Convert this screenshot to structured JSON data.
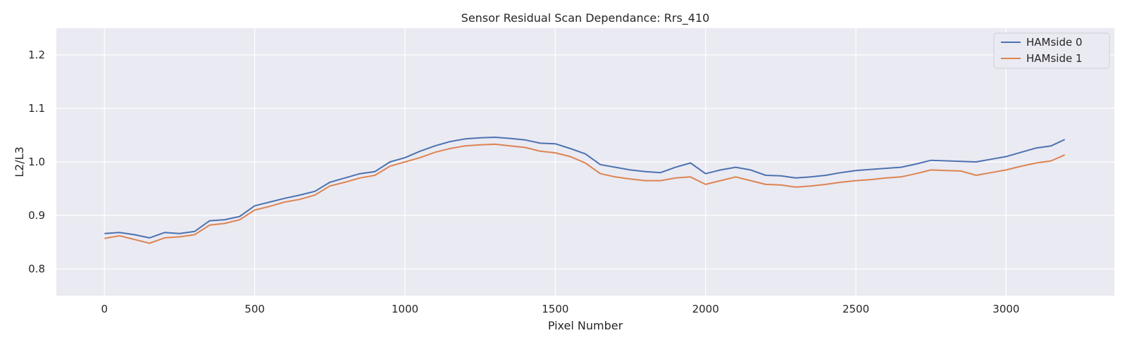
{
  "chart_data": {
    "type": "line",
    "title": "Sensor Residual Scan Dependance: Rrs_410",
    "xlabel": "Pixel Number",
    "ylabel": "L2/L3",
    "xlim": [
      -160,
      3360
    ],
    "ylim": [
      0.75,
      1.25
    ],
    "xticks": [
      0,
      500,
      1000,
      1500,
      2000,
      2500,
      3000
    ],
    "yticks": [
      0.8,
      0.9,
      1.0,
      1.1,
      1.2
    ],
    "xtick_labels": [
      "0",
      "500",
      "1000",
      "1500",
      "2000",
      "2500",
      "3000"
    ],
    "ytick_labels": [
      "0.8",
      "0.9",
      "1.0",
      "1.1",
      "1.2"
    ],
    "grid": true,
    "legend_position": "top-right",
    "background": "#eaeaf2",
    "series": [
      {
        "name": "HAMside 0",
        "color": "#4c72b0",
        "x": [
          0,
          50,
          100,
          150,
          200,
          250,
          300,
          350,
          400,
          450,
          500,
          550,
          600,
          650,
          700,
          750,
          800,
          850,
          900,
          950,
          1000,
          1050,
          1100,
          1150,
          1200,
          1250,
          1300,
          1350,
          1400,
          1450,
          1500,
          1550,
          1600,
          1650,
          1700,
          1750,
          1800,
          1850,
          1900,
          1950,
          2000,
          2050,
          2100,
          2150,
          2200,
          2250,
          2300,
          2350,
          2400,
          2450,
          2500,
          2550,
          2600,
          2650,
          2700,
          2750,
          2800,
          2850,
          2900,
          2950,
          3000,
          3050,
          3100,
          3150,
          3195
        ],
        "y": [
          0.866,
          0.868,
          0.864,
          0.858,
          0.868,
          0.866,
          0.87,
          0.89,
          0.892,
          0.898,
          0.918,
          0.925,
          0.932,
          0.938,
          0.945,
          0.962,
          0.97,
          0.978,
          0.982,
          1.0,
          1.008,
          1.02,
          1.03,
          1.038,
          1.043,
          1.045,
          1.046,
          1.044,
          1.041,
          1.035,
          1.034,
          1.025,
          1.015,
          0.995,
          0.99,
          0.985,
          0.982,
          0.98,
          0.99,
          0.998,
          0.978,
          0.985,
          0.99,
          0.985,
          0.975,
          0.974,
          0.97,
          0.972,
          0.975,
          0.98,
          0.984,
          0.986,
          0.988,
          0.99,
          0.996,
          1.003,
          1.002,
          1.001,
          1.0,
          1.005,
          1.01,
          1.018,
          1.026,
          1.03,
          1.042
        ]
      },
      {
        "name": "HAMside 1",
        "color": "#dd8452",
        "x": [
          0,
          50,
          100,
          150,
          200,
          250,
          300,
          350,
          400,
          450,
          500,
          550,
          600,
          650,
          700,
          750,
          800,
          850,
          900,
          950,
          1000,
          1050,
          1100,
          1150,
          1200,
          1250,
          1300,
          1350,
          1400,
          1450,
          1500,
          1550,
          1600,
          1650,
          1700,
          1750,
          1800,
          1850,
          1900,
          1950,
          2000,
          2050,
          2100,
          2150,
          2200,
          2250,
          2300,
          2350,
          2400,
          2450,
          2500,
          2550,
          2600,
          2650,
          2700,
          2750,
          2800,
          2850,
          2900,
          2950,
          3000,
          3050,
          3100,
          3150,
          3195
        ],
        "y": [
          0.857,
          0.862,
          0.855,
          0.848,
          0.858,
          0.86,
          0.864,
          0.882,
          0.885,
          0.892,
          0.91,
          0.917,
          0.925,
          0.93,
          0.938,
          0.955,
          0.962,
          0.97,
          0.975,
          0.992,
          1.0,
          1.008,
          1.018,
          1.025,
          1.03,
          1.032,
          1.033,
          1.03,
          1.027,
          1.02,
          1.017,
          1.01,
          0.998,
          0.978,
          0.972,
          0.968,
          0.965,
          0.965,
          0.97,
          0.972,
          0.958,
          0.965,
          0.972,
          0.965,
          0.958,
          0.957,
          0.953,
          0.955,
          0.958,
          0.962,
          0.965,
          0.967,
          0.97,
          0.972,
          0.978,
          0.985,
          0.984,
          0.983,
          0.975,
          0.98,
          0.985,
          0.992,
          0.998,
          1.002,
          1.013
        ]
      }
    ]
  }
}
